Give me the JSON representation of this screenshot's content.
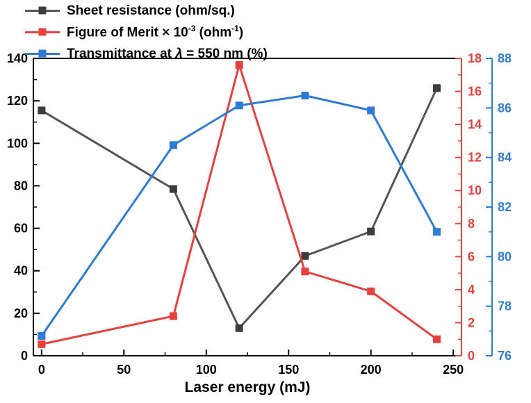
{
  "legend": {
    "items": [
      {
        "id": "sheet-resistance",
        "color": "#555555",
        "marker_color": "#3d3d3d",
        "parts": [
          {
            "text": "Sheet resistance (ohm/sq.)"
          }
        ]
      },
      {
        "id": "figure-of-merit",
        "color": "#e8413d",
        "marker_color": "#e8413d",
        "parts": [
          {
            "text": "Figure of Merit × 10"
          },
          {
            "text": "-3",
            "sup": true
          },
          {
            "text": " (ohm"
          },
          {
            "text": "-1",
            "sup": true
          },
          {
            "text": ")"
          }
        ]
      },
      {
        "id": "transmittance",
        "color": "#2e7bd6",
        "marker_color": "#2e7bd6",
        "parts": [
          {
            "text": "Transmittance at "
          },
          {
            "text": "λ",
            "italic": true
          },
          {
            "text": " = 550 nm (%)"
          }
        ]
      }
    ]
  },
  "chart_data": {
    "type": "line",
    "title": "",
    "xlabel": "Laser energy (mJ)",
    "x_range": [
      -5,
      255
    ],
    "x_ticks": [
      0,
      50,
      100,
      150,
      200,
      250
    ],
    "x_minor_step": 25,
    "axes": {
      "left": {
        "range": [
          0,
          140
        ],
        "ticks": [
          0,
          20,
          40,
          60,
          80,
          100,
          120,
          140
        ],
        "minor_step": 10,
        "color": "#000000"
      },
      "red": {
        "range": [
          0,
          18
        ],
        "ticks": [
          0,
          2,
          4,
          6,
          8,
          10,
          12,
          14,
          16,
          18
        ],
        "minor_step": 1,
        "color": "#e8413d"
      },
      "blue": {
        "range": [
          76,
          88
        ],
        "ticks": [
          76,
          78,
          80,
          82,
          84,
          86,
          88
        ],
        "minor_step": 1,
        "color": "#2e7bd6"
      }
    },
    "x": [
      0,
      80,
      120,
      160,
      200,
      240
    ],
    "series": [
      {
        "id": "sheet-resistance",
        "name": "Sheet resistance (ohm/sq.)",
        "axis": "left",
        "color": "#555555",
        "marker_color": "#3d3d3d",
        "values": [
          115.5,
          78.5,
          13,
          47,
          58.5,
          126
        ]
      },
      {
        "id": "figure-of-merit",
        "name": "Figure of Merit × 10⁻³ (ohm⁻¹)",
        "axis": "red",
        "color": "#e8413d",
        "marker_color": "#e8413d",
        "values": [
          0.7,
          2.4,
          17.6,
          5.1,
          3.9,
          1.0
        ]
      },
      {
        "id": "transmittance",
        "name": "Transmittance at λ = 550 nm (%)",
        "axis": "blue",
        "color": "#2e7bd6",
        "marker_color": "#2e7bd6",
        "values": [
          76.8,
          84.5,
          86.1,
          86.5,
          85.9,
          81.0
        ]
      }
    ]
  }
}
